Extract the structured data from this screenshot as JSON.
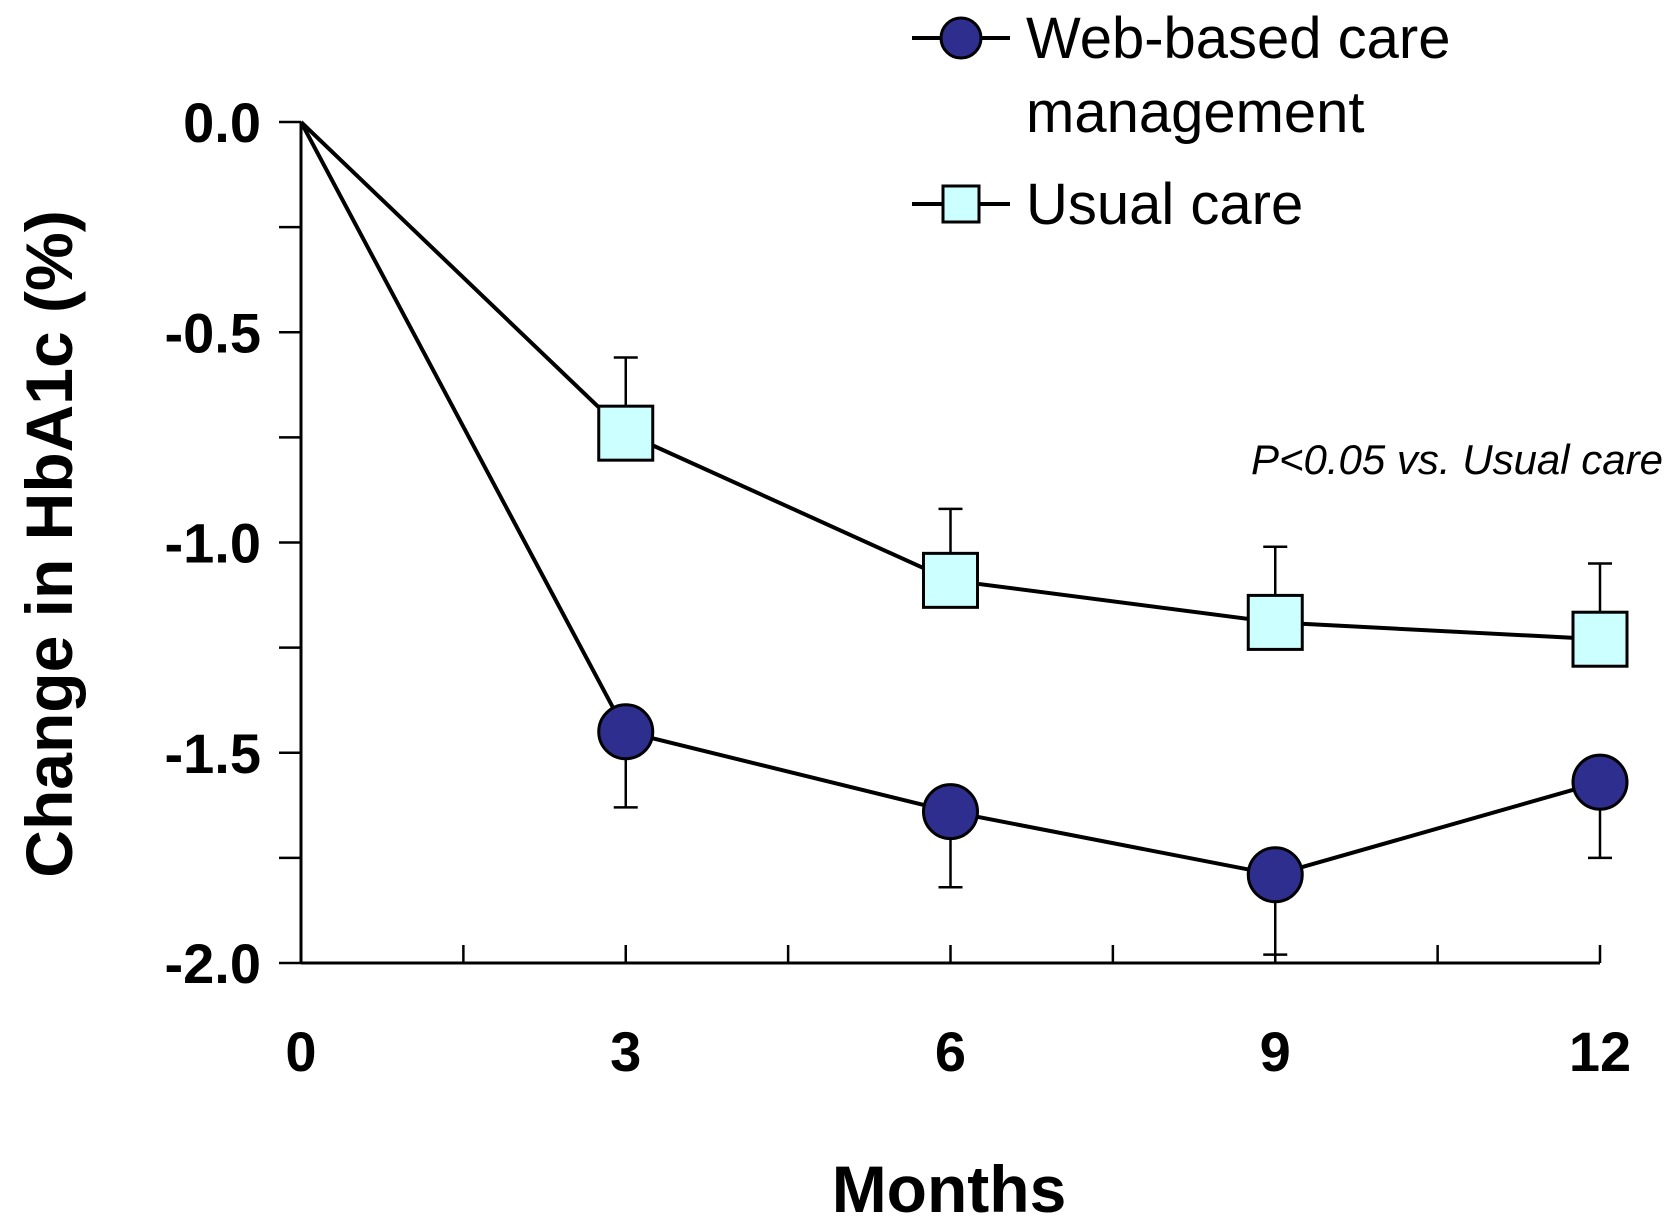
{
  "chart_data": {
    "type": "line",
    "x": [
      0,
      3,
      6,
      9,
      12
    ],
    "xlabel": "Months",
    "ylabel": "Change in HbA1c (%)",
    "xlim": [
      0,
      12
    ],
    "ylim": [
      -2.0,
      0.0
    ],
    "x_ticks": [
      "0",
      "3",
      "6",
      "9",
      "12"
    ],
    "y_ticks": [
      "0.0",
      "-0.5",
      "-1.0",
      "-1.5",
      "-2.0"
    ],
    "y_tick_values": [
      0.0,
      -0.5,
      -1.0,
      -1.5,
      -2.0
    ],
    "grid": false,
    "legend_position": "top-right",
    "annotation": "P<0.05 vs. Usual care",
    "series": [
      {
        "name": "Web-based care management",
        "legend_lines": [
          "Web-based care",
          "management"
        ],
        "marker": "circle",
        "color": "#2e2e8f",
        "values": [
          0.0,
          -1.45,
          -1.64,
          -1.79,
          -1.57
        ],
        "error": [
          0,
          0.18,
          0.18,
          0.19,
          0.18
        ],
        "error_direction": "down"
      },
      {
        "name": "Usual care",
        "legend_lines": [
          "Usual care"
        ],
        "marker": "square",
        "color": "#ccffff",
        "values": [
          0.0,
          -0.74,
          -1.09,
          -1.19,
          -1.23
        ],
        "error": [
          0,
          0.18,
          0.17,
          0.18,
          0.18
        ],
        "error_direction": "up"
      }
    ]
  }
}
